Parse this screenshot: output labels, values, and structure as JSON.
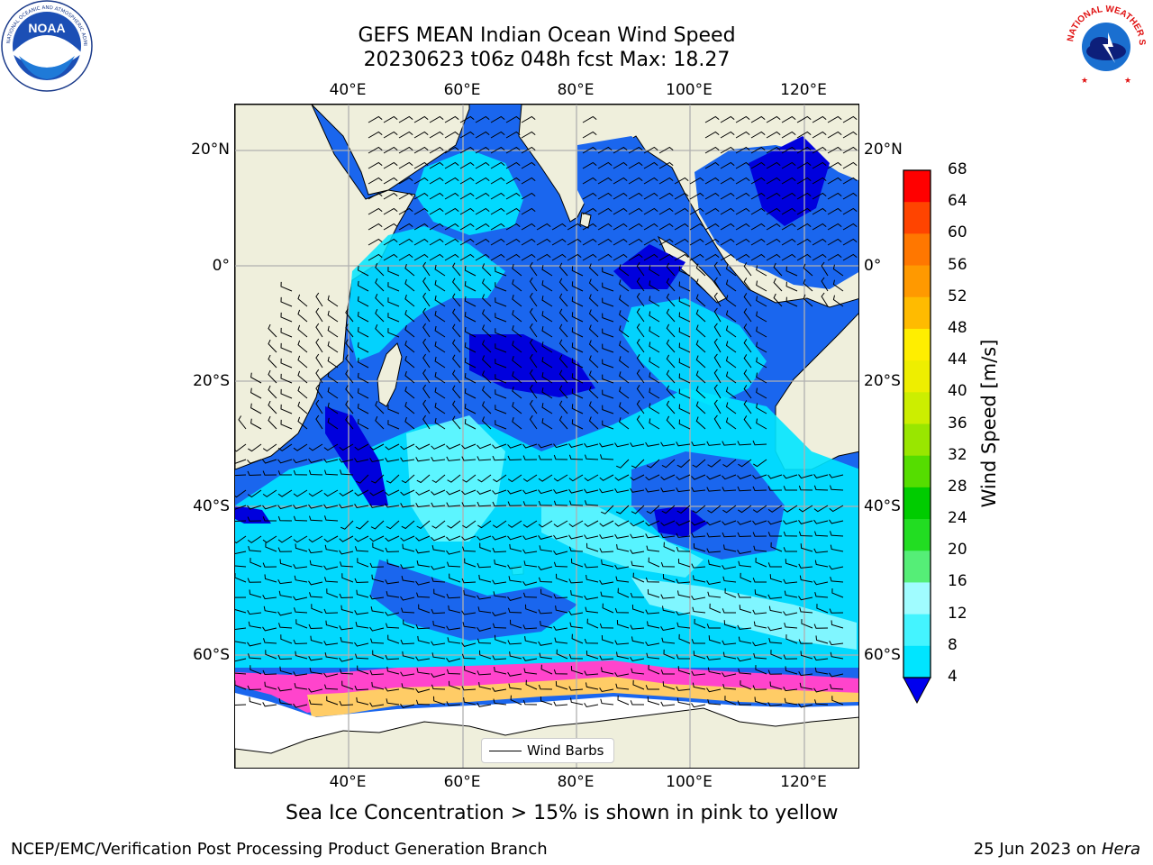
{
  "header": {
    "title_line1": "GEFS MEAN Indian Ocean Wind Speed",
    "title_line2": "20230623 t06z 048h fcst   Max: 18.27"
  },
  "logos": {
    "left": {
      "name": "NOAA",
      "text": "NOAA",
      "ring_text": "NATIONAL OCEANIC AND ATMOSPHERIC ADMINISTRATION · U.S. DEPARTMENT OF COMMERCE"
    },
    "right": {
      "name": "National Weather Service",
      "ring_text": "NATIONAL WEATHER SERVICE"
    }
  },
  "map": {
    "lon_ticks_top": [
      "40°E",
      "60°E",
      "80°E",
      "100°E",
      "120°E"
    ],
    "lon_ticks_bottom": [
      "40°E",
      "60°E",
      "80°E",
      "100°E",
      "120°E"
    ],
    "lat_ticks_left": [
      "20°N",
      "0°",
      "20°S",
      "40°S",
      "60°S"
    ],
    "lat_ticks_right": [
      "20°N",
      "0°",
      "20°S",
      "40°S",
      "60°S"
    ],
    "legend_label": "Wind Barbs",
    "colors": {
      "land": "#efefdc",
      "ice": "#ffffff",
      "ice_edge": [
        "#ff44cc",
        "#ff88aa",
        "#ffcc66",
        "#ffee88"
      ],
      "grid": "#b0b0b0"
    }
  },
  "colorbar": {
    "label": "Wind Speed [m/s]",
    "ticks": [
      "4",
      "8",
      "12",
      "16",
      "20",
      "24",
      "28",
      "32",
      "36",
      "40",
      "44",
      "48",
      "52",
      "56",
      "60",
      "64",
      "68"
    ],
    "min": 4,
    "max": 68,
    "extend": "min",
    "under_color": "#0000ee",
    "colors": [
      "#0066ff",
      "#00e5ff",
      "#44f4ff",
      "#a0fcff",
      "#55ee77",
      "#22dd22",
      "#00cc00",
      "#55dd00",
      "#99e600",
      "#ccee00",
      "#eeee00",
      "#ffee00",
      "#ffbb00",
      "#ff9900",
      "#ff7700",
      "#ff4400",
      "#ff0000"
    ]
  },
  "caption": "Sea Ice Concentration > 15% is shown in pink to yellow",
  "footer": {
    "left": "NCEP/EMC/Verification Post Processing Product Generation Branch",
    "date": "25 Jun 2023 on",
    "host": "Hera"
  }
}
